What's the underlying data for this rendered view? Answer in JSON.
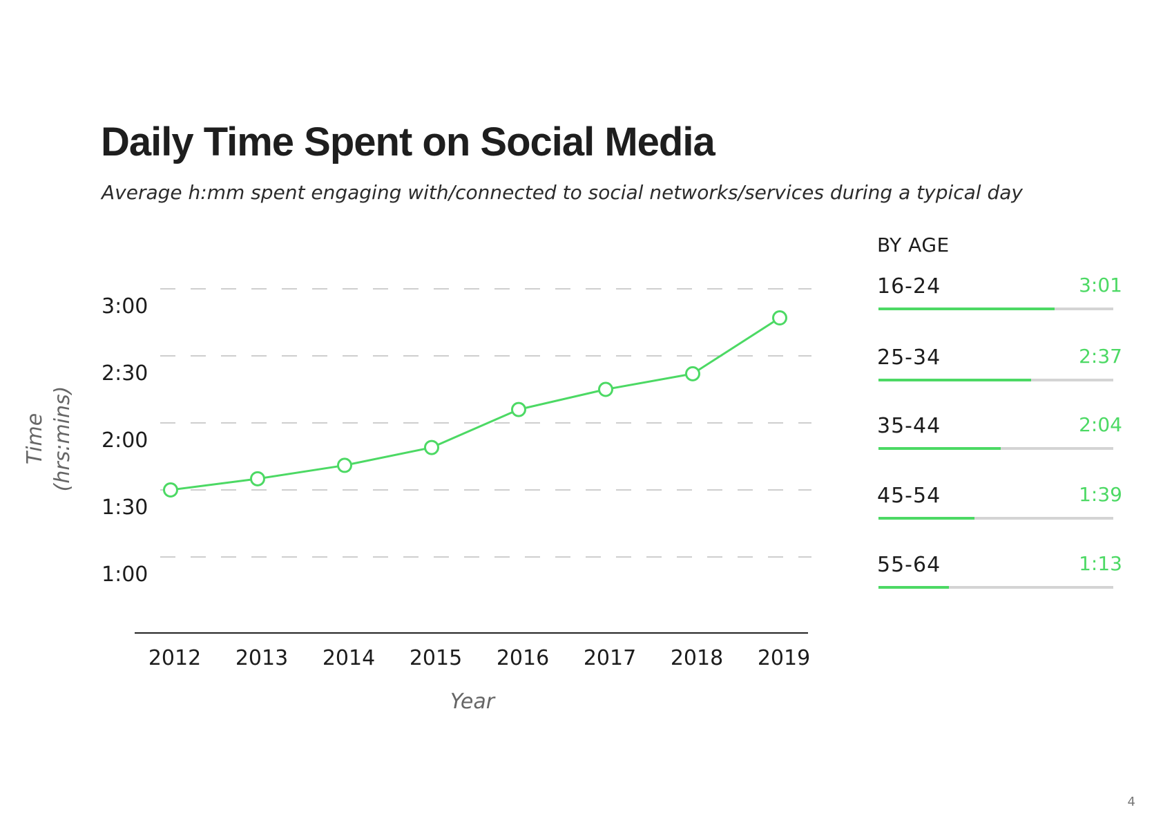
{
  "title": "Daily Time Spent on Social Media",
  "subtitle": "Average h:mm spent engaging with/connected to social networks/services during a typical day",
  "page_number": "4",
  "colors": {
    "accent": "#4cd964",
    "track": "#d4d4d4",
    "grid": "#bdbdbd",
    "axis": "#222222",
    "text": "#1c1c1c"
  },
  "by_age": {
    "heading": "BY AGE",
    "groups": [
      {
        "label": "16-24",
        "value": "3:01",
        "fraction": 0.75
      },
      {
        "label": "25-34",
        "value": "2:37",
        "fraction": 0.65
      },
      {
        "label": "35-44",
        "value": "2:04",
        "fraction": 0.52
      },
      {
        "label": "45-54",
        "value": "1:39",
        "fraction": 0.41
      },
      {
        "label": "55-64",
        "value": "1:13",
        "fraction": 0.3
      }
    ]
  },
  "chart_data": {
    "type": "line",
    "title": "Daily Time Spent on Social Media",
    "subtitle": "Average h:mm spent engaging with/connected to social networks/services during a typical day",
    "xlabel": "Year",
    "ylabel": "Time (hrs:mins)",
    "ylabel_lines": [
      "Time",
      "(hrs:mins)"
    ],
    "x": [
      "2012",
      "2013",
      "2014",
      "2015",
      "2016",
      "2017",
      "2018",
      "2019"
    ],
    "series": [
      {
        "values": [
          90,
          95,
          101,
          109,
          126,
          135,
          142,
          167
        ]
      }
    ],
    "y_unit": "minutes",
    "yticks": [
      60,
      90,
      120,
      150,
      180
    ],
    "ytick_labels": [
      "1:00",
      "1:30",
      "2:00",
      "2:30",
      "3:00"
    ],
    "ylim": [
      30,
      180
    ],
    "grid": true,
    "legend": "none"
  }
}
